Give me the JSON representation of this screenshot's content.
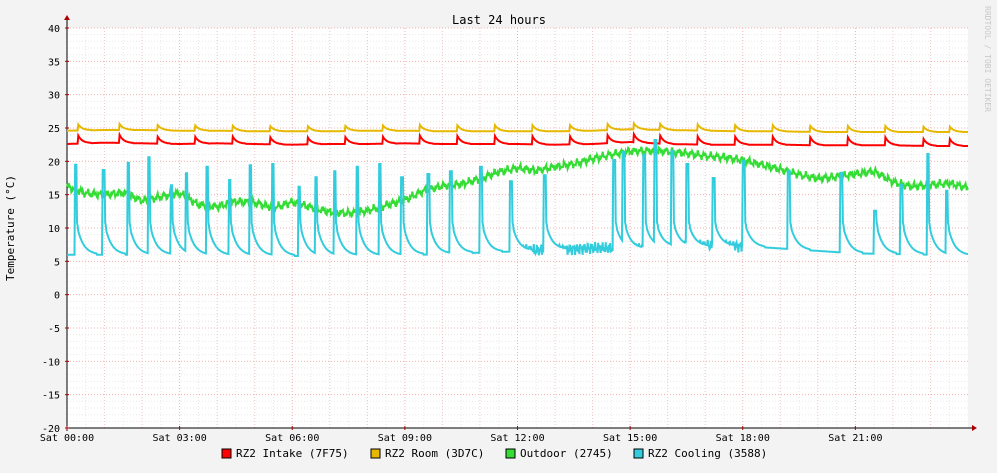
{
  "chart_data": {
    "type": "line",
    "title": "Last 24 hours",
    "ylabel": "Temperature (°C)",
    "xlabel": "",
    "ylim": [
      -20,
      40
    ],
    "yticks": [
      -20,
      -15,
      -10,
      -5,
      0,
      5,
      10,
      15,
      20,
      25,
      30,
      35,
      40
    ],
    "xlim_hours": [
      0,
      24
    ],
    "xticks": [
      {
        "hour": 0,
        "label": "Sat 00:00"
      },
      {
        "hour": 3,
        "label": "Sat 03:00"
      },
      {
        "hour": 6,
        "label": "Sat 06:00"
      },
      {
        "hour": 9,
        "label": "Sat 09:00"
      },
      {
        "hour": 12,
        "label": "Sat 12:00"
      },
      {
        "hour": 15,
        "label": "Sat 15:00"
      },
      {
        "hour": 18,
        "label": "Sat 18:00"
      },
      {
        "hour": 21,
        "label": "Sat 21:00"
      }
    ],
    "grid": true,
    "legend_position": "bottom",
    "watermark": "RRDTOOL / TOBI OETIKER",
    "series": [
      {
        "name": "RZ2 Intake (7F75)",
        "color": "#ff0000",
        "x": [
          0,
          1,
          2,
          3,
          4,
          5,
          6,
          7,
          8,
          9,
          10,
          11,
          12,
          13,
          14,
          15,
          16,
          17,
          18,
          19,
          20,
          21,
          22,
          23,
          24
        ],
        "y": [
          22.6,
          22.8,
          22.7,
          22.6,
          22.7,
          22.6,
          22.5,
          22.6,
          22.6,
          22.7,
          22.6,
          22.6,
          22.6,
          22.5,
          22.6,
          22.9,
          22.6,
          22.5,
          22.5,
          22.5,
          22.4,
          22.4,
          22.4,
          22.3,
          22.3
        ],
        "spike_hours": [
          0.3,
          1.4,
          2.4,
          3.4,
          4.4,
          5.4,
          6.4,
          7.4,
          8.4,
          9.4,
          10.4,
          11.4,
          12.4,
          13.4,
          14.4,
          15.1,
          15.8,
          16.8,
          17.8,
          18.8,
          19.8,
          20.8,
          21.8,
          22.8,
          23.5
        ],
        "spike_height": 1.2
      },
      {
        "name": "RZ2 Room (3D7C)",
        "color": "#e6b800",
        "x": [
          0,
          1,
          2,
          3,
          4,
          5,
          6,
          7,
          8,
          9,
          10,
          11,
          12,
          13,
          14,
          15,
          16,
          17,
          18,
          19,
          20,
          21,
          22,
          23,
          24
        ],
        "y": [
          24.6,
          24.7,
          24.7,
          24.6,
          24.6,
          24.5,
          24.5,
          24.5,
          24.6,
          24.6,
          24.5,
          24.5,
          24.5,
          24.5,
          24.6,
          24.8,
          24.7,
          24.6,
          24.5,
          24.5,
          24.4,
          24.4,
          24.4,
          24.4,
          24.4
        ],
        "spike_hours": [
          0.3,
          1.4,
          2.4,
          3.4,
          4.4,
          5.4,
          6.4,
          7.4,
          8.4,
          9.4,
          10.4,
          11.4,
          12.4,
          13.4,
          14.4,
          15.1,
          15.8,
          16.8,
          17.8,
          18.8,
          19.8,
          20.8,
          21.8,
          22.8,
          23.5
        ],
        "spike_height": 0.9
      },
      {
        "name": "Outdoor (2745)",
        "color": "#33dd33",
        "x": [
          0,
          0.5,
          1,
          1.5,
          2,
          2.5,
          3,
          3.5,
          4,
          4.5,
          5,
          5.5,
          6,
          6.5,
          7,
          7.5,
          8,
          8.5,
          9,
          9.5,
          10,
          10.5,
          11,
          11.5,
          12,
          12.5,
          13,
          13.5,
          14,
          14.5,
          15,
          15.5,
          16,
          16.5,
          17,
          17.5,
          18,
          18.5,
          19,
          19.5,
          20,
          20.5,
          21,
          21.5,
          22,
          22.5,
          23,
          23.5,
          24
        ],
        "y": [
          16.2,
          15.2,
          15.0,
          15.3,
          14.1,
          14.7,
          15.2,
          13.5,
          13.2,
          14.0,
          13.8,
          13.0,
          13.9,
          13.1,
          12.4,
          12.2,
          12.6,
          13.4,
          14.2,
          15.6,
          16.3,
          16.6,
          17.4,
          18.4,
          19.0,
          18.6,
          19.2,
          19.6,
          20.4,
          21.0,
          21.5,
          21.6,
          21.5,
          21.2,
          20.8,
          20.6,
          20.2,
          19.5,
          18.8,
          18.0,
          17.4,
          17.7,
          18.1,
          18.5,
          16.9,
          16.2,
          16.5,
          16.7,
          16.0
        ]
      },
      {
        "name": "RZ2 Cooling (3588)",
        "color": "#33ccdd",
        "baseline_x": [
          0,
          3,
          6,
          9,
          12,
          14,
          15,
          16,
          18,
          21,
          24
        ],
        "baseline_y": [
          6.0,
          6.0,
          5.8,
          5.9,
          6.5,
          7.0,
          6.8,
          7.2,
          7.3,
          6.2,
          5.9
        ],
        "spike_hours": [
          0.2,
          0.95,
          1.6,
          2.15,
          2.75,
          3.15,
          3.7,
          4.3,
          4.85,
          5.45,
          6.15,
          6.6,
          7.1,
          7.7,
          8.3,
          8.9,
          9.6,
          10.2,
          11.0,
          11.8,
          12.7,
          14.55,
          14.8,
          15.35,
          15.65,
          16.1,
          16.5,
          17.2,
          18.0,
          19.2,
          20.6,
          21.5,
          22.2,
          22.9,
          23.4
        ],
        "spike_peaks": [
          19.5,
          18.7,
          19.8,
          20.6,
          16.4,
          18.2,
          19.2,
          17.2,
          19.4,
          19.6,
          16.2,
          17.6,
          18.5,
          19.2,
          19.6,
          17.6,
          18.1,
          18.5,
          19.2,
          17.0,
          17.9,
          20.2,
          21.4,
          21.0,
          23.2,
          21.6,
          19.6,
          17.5,
          20.1,
          18.6,
          18.3,
          12.6,
          16.5,
          21.1,
          15.6
        ]
      }
    ]
  }
}
